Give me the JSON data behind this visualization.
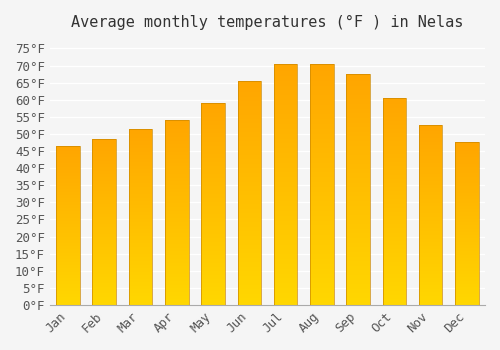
{
  "months": [
    "Jan",
    "Feb",
    "Mar",
    "Apr",
    "May",
    "Jun",
    "Jul",
    "Aug",
    "Sep",
    "Oct",
    "Nov",
    "Dec"
  ],
  "values": [
    46.5,
    48.5,
    51.5,
    54.0,
    59.0,
    65.5,
    70.5,
    70.5,
    67.5,
    60.5,
    52.5,
    47.5
  ],
  "bar_color_top": "#FFA500",
  "bar_color_bottom": "#FFD700",
  "bar_edge_color": "#CC8800",
  "title": "Average monthly temperatures (°F ) in Nelas",
  "ylim": [
    0,
    78
  ],
  "yticks": [
    0,
    5,
    10,
    15,
    20,
    25,
    30,
    35,
    40,
    45,
    50,
    55,
    60,
    65,
    70,
    75
  ],
  "background_color": "#f5f5f5",
  "grid_color": "#ffffff",
  "title_fontsize": 11,
  "tick_fontsize": 9,
  "font_family": "monospace"
}
